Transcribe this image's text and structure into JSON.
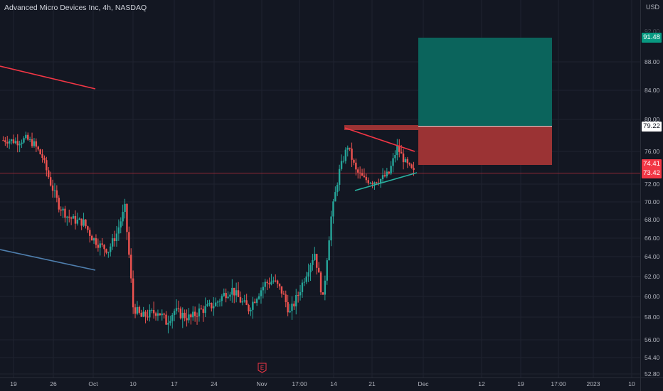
{
  "header": {
    "symbol_title": "Advanced Micro Devices Inc, 4h, NASDAQ"
  },
  "price_scale": {
    "currency": "USD",
    "ticks": [
      "88.00",
      "84.00",
      "80.00",
      "76.00",
      "72.00",
      "70.00",
      "68.00",
      "66.00",
      "64.00",
      "62.00",
      "60.00",
      "58.00",
      "56.00",
      "54.40",
      "52.80"
    ],
    "ticks_faint": [
      "92.00"
    ]
  },
  "time_axis": {
    "labels": [
      "19",
      "26",
      "Oct",
      "10",
      "17",
      "24",
      "Nov",
      "17:00",
      "14",
      "21",
      "Dec",
      "12",
      "19",
      "17:00",
      "2023",
      "10"
    ]
  },
  "badges": {
    "target": {
      "value": "91.48",
      "bg": "#089981",
      "color": "#ffffff"
    },
    "entry": {
      "value": "79.22",
      "bg": "#ffffff",
      "color": "#131722"
    },
    "stop": {
      "value": "74.41",
      "bg": "#f23645",
      "color": "#ffffff"
    },
    "last": {
      "value": "73.42",
      "bg": "#f23645",
      "color": "#ffffff"
    }
  },
  "earnings_marker": {
    "icon": "earnings-icon",
    "letter": "E",
    "color": "#f23645"
  },
  "colors": {
    "background": "#131722",
    "grid": "#1f2330",
    "up": "#26a69a",
    "down": "#ef5350",
    "profit_zone": "#0b645c",
    "loss_zone": "#9b3334",
    "trendline_red": "#f23645",
    "trendline_blue": "#4f7fae",
    "trendline_teal": "#2ab1a0",
    "axis_text": "#b2b5be"
  },
  "chart_data": {
    "type": "candlestick",
    "title": "Advanced Micro Devices Inc, 4h, NASDAQ",
    "currency": "USD",
    "series_close": [
      {
        "t": "Sep 19",
        "close": 77.4
      },
      {
        "t": "Sep 20",
        "close": 77.2
      },
      {
        "t": "Sep 21",
        "close": 77.6
      },
      {
        "t": "Sep 22",
        "close": 76.9
      },
      {
        "t": "Sep 23",
        "close": 75.3
      },
      {
        "t": "Sep 26",
        "close": 72.1
      },
      {
        "t": "Sep 27",
        "close": 69.6
      },
      {
        "t": "Sep 28",
        "close": 68.4
      },
      {
        "t": "Sep 29",
        "close": 67.9
      },
      {
        "t": "Sep 30",
        "close": 67.7
      },
      {
        "t": "Oct 3",
        "close": 66.1
      },
      {
        "t": "Oct 4",
        "close": 65.2
      },
      {
        "t": "Oct 5",
        "close": 64.7
      },
      {
        "t": "Oct 6",
        "close": 66.5
      },
      {
        "t": "Oct 7",
        "close": 69.3
      },
      {
        "t": "Oct 10",
        "close": 59.0
      },
      {
        "t": "Oct 11",
        "close": 58.0
      },
      {
        "t": "Oct 12",
        "close": 58.3
      },
      {
        "t": "Oct 13",
        "close": 58.6
      },
      {
        "t": "Oct 14",
        "close": 57.6
      },
      {
        "t": "Oct 17",
        "close": 58.6
      },
      {
        "t": "Oct 18",
        "close": 58.2
      },
      {
        "t": "Oct 19",
        "close": 57.9
      },
      {
        "t": "Oct 20",
        "close": 58.6
      },
      {
        "t": "Oct 21",
        "close": 58.9
      },
      {
        "t": "Oct 24",
        "close": 59.3
      },
      {
        "t": "Oct 25",
        "close": 60.2
      },
      {
        "t": "Oct 26",
        "close": 60.7
      },
      {
        "t": "Oct 27",
        "close": 59.6
      },
      {
        "t": "Oct 28",
        "close": 58.8
      },
      {
        "t": "Oct 31",
        "close": 60.1
      },
      {
        "t": "Nov 1",
        "close": 61.3
      },
      {
        "t": "Nov 2",
        "close": 61.6
      },
      {
        "t": "Nov 3",
        "close": 60.5
      },
      {
        "t": "Nov 4",
        "close": 58.4
      },
      {
        "t": "Nov 7",
        "close": 60.2
      },
      {
        "t": "Nov 8",
        "close": 62.4
      },
      {
        "t": "Nov 9",
        "close": 64.4
      },
      {
        "t": "Nov 10",
        "close": 59.7
      },
      {
        "t": "Nov 11",
        "close": 68.3
      },
      {
        "t": "Nov 14",
        "close": 73.6
      },
      {
        "t": "Nov 15",
        "close": 76.7
      },
      {
        "t": "Nov 16",
        "close": 73.6
      },
      {
        "t": "Nov 17",
        "close": 72.6
      },
      {
        "t": "Nov 18",
        "close": 72.3
      },
      {
        "t": "Nov 21",
        "close": 72.6
      },
      {
        "t": "Nov 22",
        "close": 73.3
      },
      {
        "t": "Nov 23",
        "close": 76.5
      },
      {
        "t": "Nov 25",
        "close": 74.6
      },
      {
        "t": "Nov 28",
        "close": 73.4
      }
    ],
    "position_tool": {
      "entry": 79.22,
      "target": 91.48,
      "stop": 74.41
    },
    "last_price": 73.42
  }
}
